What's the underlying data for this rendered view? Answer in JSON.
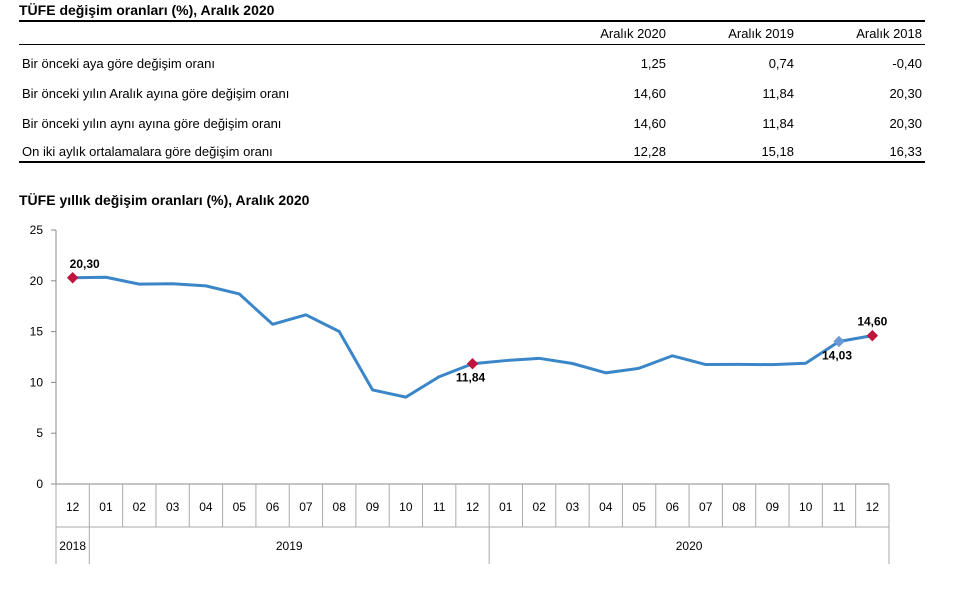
{
  "table": {
    "title": "TÜFE değişim oranları (%), Aralık 2020",
    "headers": [
      "Aralık 2020",
      "Aralık 2019",
      "Aralık 2018"
    ],
    "rows": [
      {
        "label": "Bir önceki aya göre değişim oranı",
        "values": [
          "1,25",
          "0,74",
          "-0,40"
        ]
      },
      {
        "label": "Bir önceki yılın Aralık ayına göre değişim oranı",
        "values": [
          "14,60",
          "11,84",
          "20,30"
        ]
      },
      {
        "label": "Bir önceki yılın aynı ayına göre değişim oranı",
        "values": [
          "14,60",
          "11,84",
          "20,30"
        ]
      },
      {
        "label": "On iki aylık ortalamalara göre değişim oranı",
        "values": [
          "12,28",
          "15,18",
          "16,33"
        ]
      }
    ]
  },
  "chart_data": {
    "type": "line",
    "title": "TÜFE yıllık değişim oranları (%), Aralık 2020",
    "ylim": [
      0,
      25
    ],
    "yticks": [
      0,
      5,
      10,
      15,
      20,
      25
    ],
    "x": [
      "12",
      "01",
      "02",
      "03",
      "04",
      "05",
      "06",
      "07",
      "08",
      "09",
      "10",
      "11",
      "12",
      "01",
      "02",
      "03",
      "04",
      "05",
      "06",
      "07",
      "08",
      "09",
      "10",
      "11",
      "12"
    ],
    "years": [
      {
        "label": "2018",
        "count": 1
      },
      {
        "label": "2019",
        "count": 12
      },
      {
        "label": "2020",
        "count": 12
      }
    ],
    "values": [
      20.3,
      20.35,
      19.67,
      19.71,
      19.5,
      18.71,
      15.72,
      16.65,
      15.01,
      9.26,
      8.55,
      10.56,
      11.84,
      12.15,
      12.37,
      11.86,
      10.94,
      11.39,
      12.62,
      11.76,
      11.77,
      11.75,
      11.89,
      14.03,
      14.6
    ],
    "line_color": "#3a86c8",
    "marker_color": "#c0143c",
    "highlight_marker_color": "#6a9ad4",
    "annotations": [
      {
        "index": 0,
        "label": "20,30",
        "position": "above",
        "marker": "red"
      },
      {
        "index": 12,
        "label": "11,84",
        "position": "below",
        "marker": "red"
      },
      {
        "index": 23,
        "label": "14,03",
        "position": "below",
        "marker": "blue"
      },
      {
        "index": 24,
        "label": "14,60",
        "position": "above",
        "marker": "red"
      }
    ],
    "grid": false,
    "legend": "none"
  }
}
